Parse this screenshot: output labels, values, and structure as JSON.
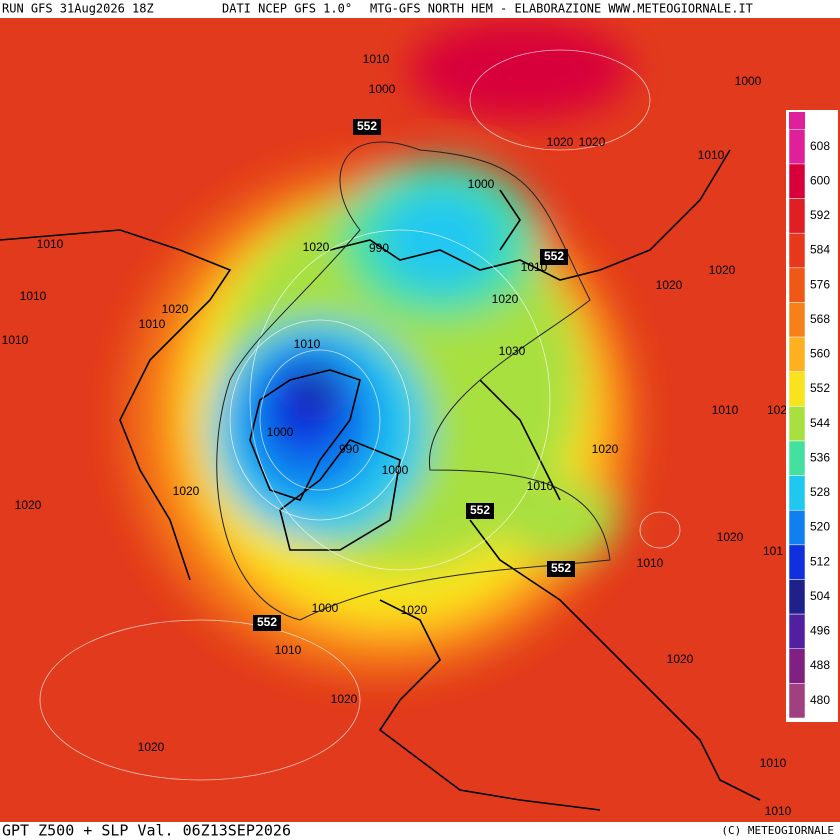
{
  "header": {
    "left": "RUN GFS 31Aug2026 18Z",
    "middle": "DATI NCEP GFS 1.0°",
    "right": "MTG-GFS NORTH HEM - ELABORAZIONE WWW.METEOGIORNALE.IT"
  },
  "footer": {
    "title": "GPT Z500 + SLP Val. 06Z13SEP2026",
    "copyright": "(C) METEOGIORNALE"
  },
  "legend": {
    "levels": [
      "608",
      "600",
      "592",
      "584",
      "576",
      "568",
      "560",
      "552",
      "544",
      "536",
      "528",
      "520",
      "512",
      "504",
      "496",
      "488",
      "480"
    ],
    "colors": [
      "#e0209a",
      "#d8003a",
      "#e01e24",
      "#e8381c",
      "#f05818",
      "#f88018",
      "#ffb020",
      "#f8e41e",
      "#a8e040",
      "#44e0a0",
      "#20c8f0",
      "#1080f0",
      "#1030e0",
      "#20208c",
      "#5020a0",
      "#802080",
      "#a04080"
    ]
  },
  "isobars": [
    "1010",
    "1000",
    "1000",
    "1020",
    "1020",
    "1010",
    "1000",
    "1010",
    "1020",
    "990",
    "1010",
    "1020",
    "1010",
    "1020",
    "1020",
    "1020",
    "1010",
    "1010",
    "1010",
    "1030",
    "1010",
    "102",
    "1000",
    "990",
    "1020",
    "1000",
    "1010",
    "1020",
    "1020",
    "1020",
    "101",
    "1010",
    "1000",
    "1020",
    "1010",
    "1020",
    "1020",
    "1020",
    "1010",
    "1010"
  ],
  "heights": [
    "552",
    "552",
    "552",
    "552",
    "552"
  ]
}
